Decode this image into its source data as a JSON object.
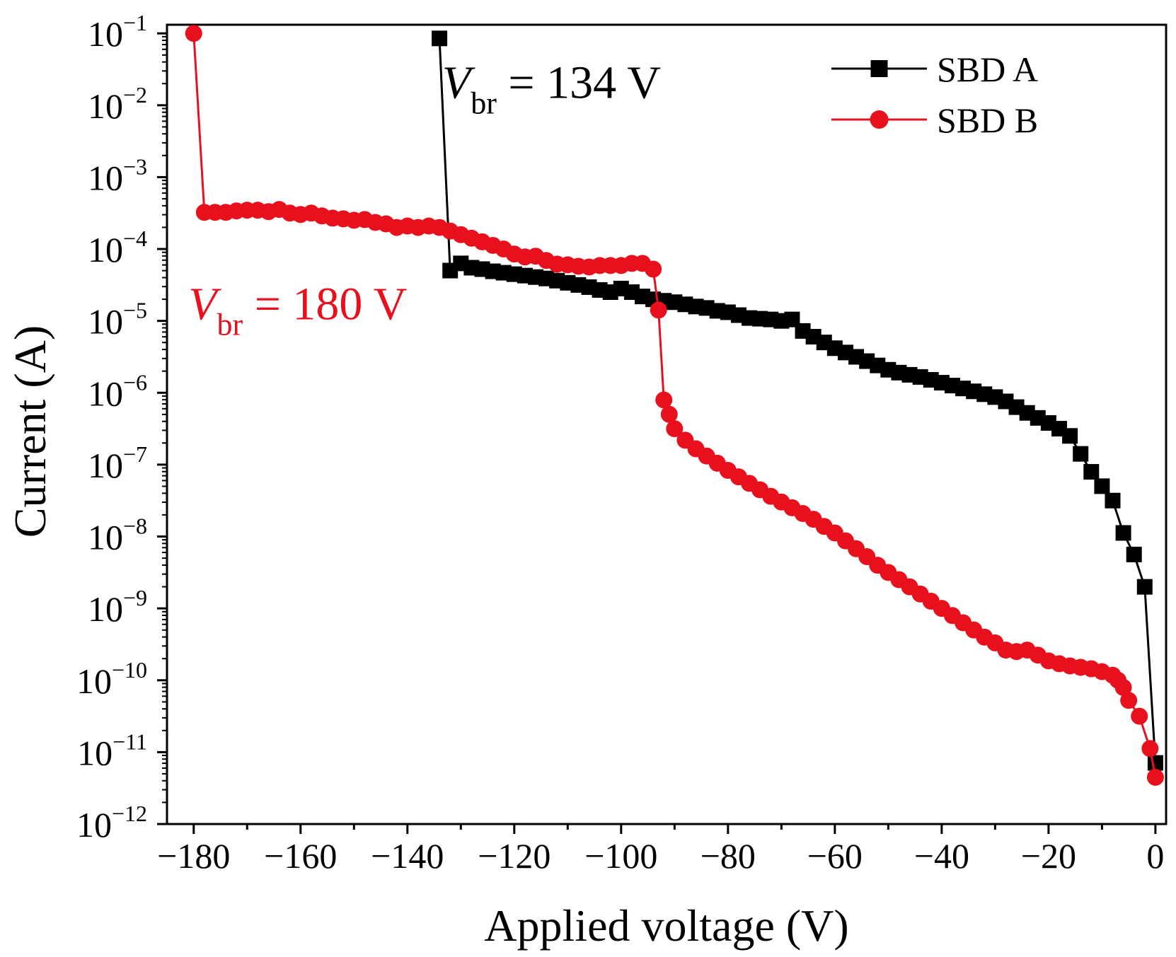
{
  "chart_data": {
    "type": "line",
    "title": "",
    "xlabel": "Applied voltage (V)",
    "ylabel": "Current (A)",
    "xlim": [
      -185,
      2
    ],
    "ylim_log10": [
      -12,
      -0.88
    ],
    "y_scale": "log",
    "x_ticks": [
      -180,
      -160,
      -140,
      -120,
      -100,
      -80,
      -60,
      -40,
      -20,
      0
    ],
    "x_tick_labels": [
      "−180",
      "−160",
      "−140",
      "−120",
      "−100",
      "−80",
      "−60",
      "−40",
      "−20",
      "0"
    ],
    "y_tick_exponents": [
      -1,
      -2,
      -3,
      -4,
      -5,
      -6,
      -7,
      -8,
      -9,
      -10,
      -11,
      -12
    ],
    "y_tick_base": "10",
    "y_tick_labels": [
      "−1",
      "−2",
      "−3",
      "−4",
      "−5",
      "−6",
      "−7",
      "−8",
      "−9",
      "−10",
      "−11",
      "−12"
    ],
    "grid": false,
    "legend_position": "top-right",
    "series": [
      {
        "name": "SBD A",
        "color": "#000000",
        "marker": "square",
        "points": [
          [
            0,
            -11.15
          ],
          [
            -2,
            -8.7
          ],
          [
            -4,
            -8.25
          ],
          [
            -6,
            -7.95
          ],
          [
            -8,
            -7.5
          ],
          [
            -10,
            -7.3
          ],
          [
            -12,
            -7.1
          ],
          [
            -14,
            -6.85
          ],
          [
            -16,
            -6.6
          ],
          [
            -18,
            -6.5
          ],
          [
            -20,
            -6.42
          ],
          [
            -22,
            -6.35
          ],
          [
            -24,
            -6.28
          ],
          [
            -26,
            -6.2
          ],
          [
            -28,
            -6.12
          ],
          [
            -30,
            -6.06
          ],
          [
            -32,
            -6.02
          ],
          [
            -34,
            -5.98
          ],
          [
            -36,
            -5.94
          ],
          [
            -38,
            -5.9
          ],
          [
            -40,
            -5.86
          ],
          [
            -42,
            -5.82
          ],
          [
            -44,
            -5.78
          ],
          [
            -46,
            -5.75
          ],
          [
            -48,
            -5.72
          ],
          [
            -50,
            -5.68
          ],
          [
            -52,
            -5.62
          ],
          [
            -54,
            -5.56
          ],
          [
            -56,
            -5.5
          ],
          [
            -58,
            -5.44
          ],
          [
            -60,
            -5.38
          ],
          [
            -62,
            -5.3
          ],
          [
            -64,
            -5.22
          ],
          [
            -66,
            -5.14
          ],
          [
            -68,
            -4.98
          ],
          [
            -70,
            -5.0
          ],
          [
            -72,
            -4.98
          ],
          [
            -74,
            -4.97
          ],
          [
            -76,
            -4.96
          ],
          [
            -78,
            -4.92
          ],
          [
            -80,
            -4.88
          ],
          [
            -82,
            -4.86
          ],
          [
            -84,
            -4.82
          ],
          [
            -86,
            -4.8
          ],
          [
            -88,
            -4.77
          ],
          [
            -90,
            -4.74
          ],
          [
            -92,
            -4.72
          ],
          [
            -94,
            -4.7
          ],
          [
            -96,
            -4.66
          ],
          [
            -98,
            -4.6
          ],
          [
            -100,
            -4.55
          ],
          [
            -102,
            -4.6
          ],
          [
            -104,
            -4.57
          ],
          [
            -106,
            -4.53
          ],
          [
            -108,
            -4.5
          ],
          [
            -110,
            -4.47
          ],
          [
            -112,
            -4.44
          ],
          [
            -114,
            -4.41
          ],
          [
            -116,
            -4.39
          ],
          [
            -118,
            -4.37
          ],
          [
            -120,
            -4.35
          ],
          [
            -122,
            -4.33
          ],
          [
            -124,
            -4.31
          ],
          [
            -126,
            -4.28
          ],
          [
            -128,
            -4.26
          ],
          [
            -130,
            -4.2
          ],
          [
            -132,
            -4.3
          ],
          [
            -134,
            -1.07
          ]
        ]
      },
      {
        "name": "SBD B",
        "color": "#e8101c",
        "marker": "circle",
        "points": [
          [
            0,
            -11.35
          ],
          [
            -1,
            -10.95
          ],
          [
            -3,
            -10.5
          ],
          [
            -5,
            -10.28
          ],
          [
            -6,
            -10.1
          ],
          [
            -7,
            -10.0
          ],
          [
            -8,
            -9.93
          ],
          [
            -10,
            -9.88
          ],
          [
            -12,
            -9.84
          ],
          [
            -14,
            -9.82
          ],
          [
            -16,
            -9.8
          ],
          [
            -18,
            -9.77
          ],
          [
            -20,
            -9.73
          ],
          [
            -22,
            -9.65
          ],
          [
            -24,
            -9.58
          ],
          [
            -26,
            -9.6
          ],
          [
            -28,
            -9.58
          ],
          [
            -30,
            -9.48
          ],
          [
            -32,
            -9.4
          ],
          [
            -34,
            -9.3
          ],
          [
            -36,
            -9.2
          ],
          [
            -38,
            -9.1
          ],
          [
            -40,
            -9.0
          ],
          [
            -42,
            -8.9
          ],
          [
            -44,
            -8.8
          ],
          [
            -46,
            -8.7
          ],
          [
            -48,
            -8.6
          ],
          [
            -50,
            -8.5
          ],
          [
            -52,
            -8.4
          ],
          [
            -54,
            -8.28
          ],
          [
            -56,
            -8.17
          ],
          [
            -58,
            -8.06
          ],
          [
            -60,
            -7.95
          ],
          [
            -62,
            -7.86
          ],
          [
            -64,
            -7.76
          ],
          [
            -66,
            -7.68
          ],
          [
            -68,
            -7.6
          ],
          [
            -70,
            -7.52
          ],
          [
            -72,
            -7.44
          ],
          [
            -74,
            -7.35
          ],
          [
            -76,
            -7.26
          ],
          [
            -78,
            -7.17
          ],
          [
            -80,
            -7.08
          ],
          [
            -82,
            -6.98
          ],
          [
            -84,
            -6.88
          ],
          [
            -86,
            -6.78
          ],
          [
            -88,
            -6.66
          ],
          [
            -90,
            -6.5
          ],
          [
            -91,
            -6.3
          ],
          [
            -92,
            -6.1
          ],
          [
            -93,
            -4.85
          ],
          [
            -94,
            -4.28
          ],
          [
            -96,
            -4.2
          ],
          [
            -98,
            -4.2
          ],
          [
            -100,
            -4.23
          ],
          [
            -102,
            -4.23
          ],
          [
            -104,
            -4.23
          ],
          [
            -106,
            -4.25
          ],
          [
            -108,
            -4.24
          ],
          [
            -110,
            -4.22
          ],
          [
            -112,
            -4.21
          ],
          [
            -114,
            -4.16
          ],
          [
            -116,
            -4.1
          ],
          [
            -118,
            -4.11
          ],
          [
            -120,
            -4.07
          ],
          [
            -122,
            -4.0
          ],
          [
            -124,
            -3.95
          ],
          [
            -126,
            -3.9
          ],
          [
            -128,
            -3.85
          ],
          [
            -130,
            -3.8
          ],
          [
            -132,
            -3.75
          ],
          [
            -134,
            -3.7
          ],
          [
            -136,
            -3.68
          ],
          [
            -138,
            -3.7
          ],
          [
            -140,
            -3.68
          ],
          [
            -142,
            -3.7
          ],
          [
            -144,
            -3.65
          ],
          [
            -146,
            -3.63
          ],
          [
            -148,
            -3.59
          ],
          [
            -150,
            -3.6
          ],
          [
            -152,
            -3.58
          ],
          [
            -154,
            -3.57
          ],
          [
            -156,
            -3.54
          ],
          [
            -158,
            -3.5
          ],
          [
            -160,
            -3.52
          ],
          [
            -162,
            -3.5
          ],
          [
            -164,
            -3.45
          ],
          [
            -166,
            -3.48
          ],
          [
            -168,
            -3.46
          ],
          [
            -170,
            -3.46
          ],
          [
            -172,
            -3.47
          ],
          [
            -174,
            -3.49
          ],
          [
            -176,
            -3.49
          ],
          [
            -178,
            -3.49
          ],
          [
            -180,
            -1.0
          ]
        ]
      }
    ],
    "annotations": [
      {
        "series": "SBD A",
        "symbol": "V",
        "subscript": "br",
        "text": " = 134 V",
        "color": "#000000",
        "anchor": [
          -133.5,
          -1.9
        ]
      },
      {
        "series": "SBD B",
        "symbol": "V",
        "subscript": "br",
        "text": " = 180 V",
        "color": "#e8101c",
        "anchor": [
          -181,
          -4.98
        ]
      }
    ]
  }
}
